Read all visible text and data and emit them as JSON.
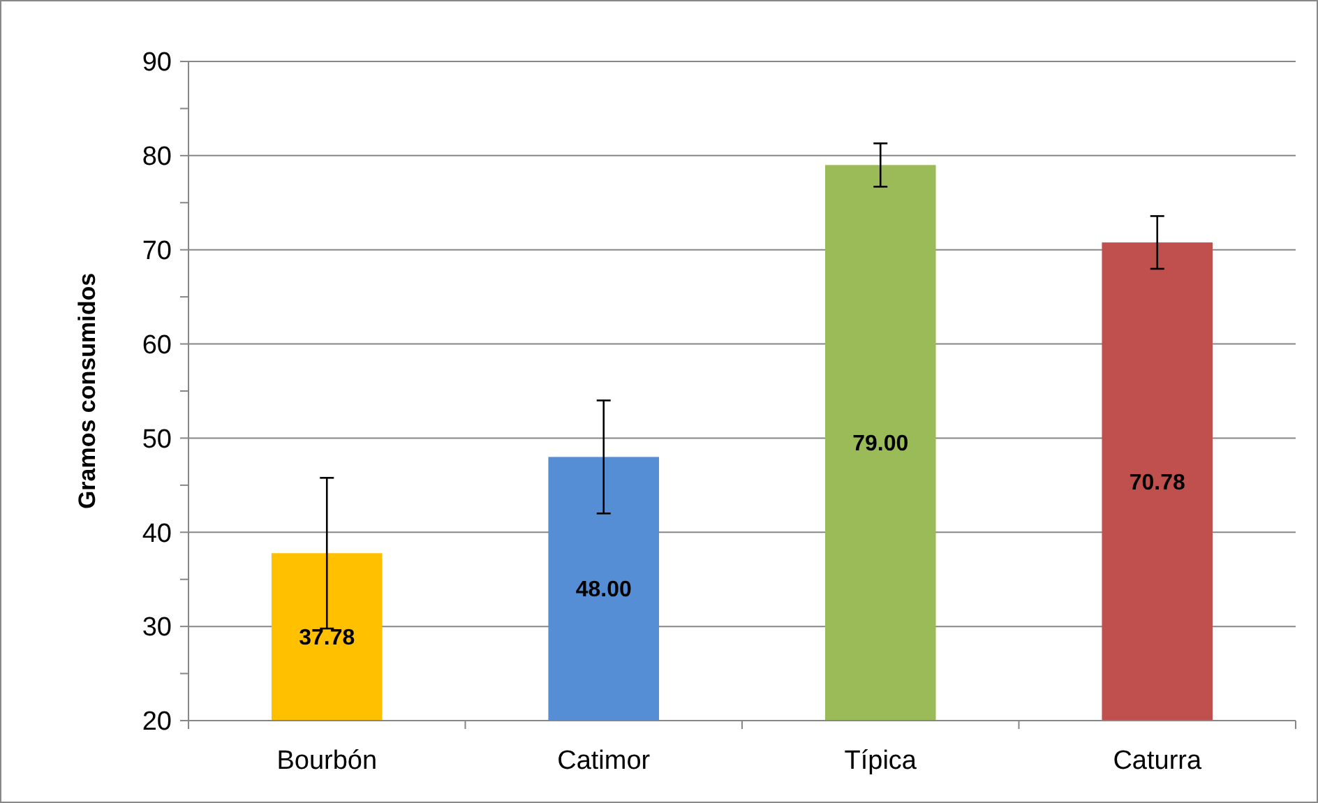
{
  "chart_data": {
    "type": "bar",
    "ylabel": "Gramos  consumidos",
    "categories": [
      "Bourbón",
      "Catimor",
      "Típica",
      "Caturra"
    ],
    "values": [
      37.78,
      48.0,
      79.0,
      70.78
    ],
    "colors": [
      "#ffc000",
      "#558ed5",
      "#9bbb59",
      "#c0504d"
    ],
    "errors": [
      8,
      6,
      2.3,
      2.8
    ],
    "value_labels": [
      "37.78",
      "48.00",
      "79.00",
      "70.78"
    ],
    "ylim": [
      20,
      90
    ],
    "yticks": [
      20,
      {
        "value": 25,
        "label": null
      },
      30,
      {
        "value": 35,
        "label": null
      },
      40,
      {
        "value": 45,
        "label": null
      },
      50,
      {
        "value": 55,
        "label": null
      },
      60,
      {
        "value": 65,
        "label": null
      },
      70,
      {
        "value": 75,
        "label": null
      },
      80,
      {
        "value": 85,
        "label": null
      },
      90
    ],
    "grid": "y"
  }
}
